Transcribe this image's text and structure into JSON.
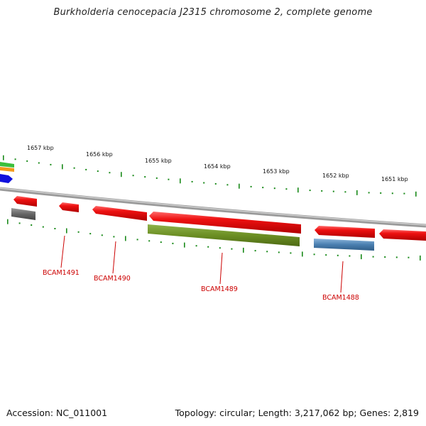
{
  "title": "Burkholderia cenocepacia J2315 chromosome 2, complete genome",
  "footer": {
    "accession": "Accession: NC_011001",
    "summary": "Topology: circular; Length: 3,217,062 bp; Genes: 2,819"
  },
  "scale_labels": [
    {
      "text": "1657 kbp"
    },
    {
      "text": "1656 kbp"
    },
    {
      "text": "1655 kbp"
    },
    {
      "text": "1654 kbp"
    },
    {
      "text": "1653 kbp"
    },
    {
      "text": "1652 kbp"
    },
    {
      "text": "1651 kbp"
    }
  ],
  "gene_labels": [
    {
      "text": "BCAM1491"
    },
    {
      "text": "BCAM1490"
    },
    {
      "text": "BCAM1489"
    },
    {
      "text": "BCAM1488"
    }
  ],
  "colors": {
    "backbone": "#8a8a8a",
    "cds": "#ee1111",
    "tick": "#1a8a1a",
    "olive": "#6b8e23",
    "steel": "#4a7fb0",
    "grey": "#666666",
    "label": "#cc0000"
  }
}
